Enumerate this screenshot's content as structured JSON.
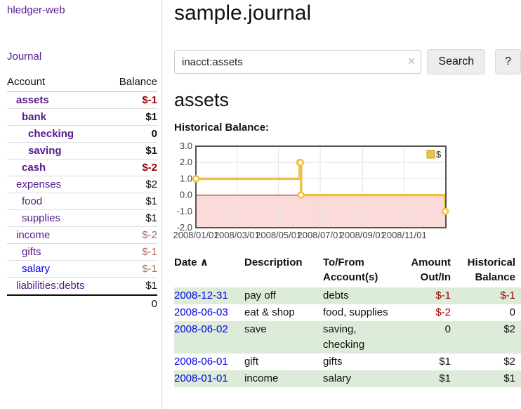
{
  "app": {
    "brand": "hledger-web",
    "nav": {
      "journal": "Journal"
    }
  },
  "sidebar": {
    "account_header": "Account",
    "balance_header": "Balance",
    "rows": [
      {
        "account": "assets",
        "balance": "$-1"
      },
      {
        "account": "bank",
        "balance": "$1"
      },
      {
        "account": "checking",
        "balance": "0"
      },
      {
        "account": "saving",
        "balance": "$1"
      },
      {
        "account": "cash",
        "balance": "$-2"
      },
      {
        "account": "expenses",
        "balance": "$2"
      },
      {
        "account": "food",
        "balance": "$1"
      },
      {
        "account": "supplies",
        "balance": "$1"
      },
      {
        "account": "income",
        "balance": "$-2"
      },
      {
        "account": "gifts",
        "balance": "$-1"
      },
      {
        "account": "salary",
        "balance": "$-1"
      },
      {
        "account": "liabilities:debts",
        "balance": "$1"
      }
    ],
    "total": "0"
  },
  "header": {
    "title": "sample.journal"
  },
  "search": {
    "value": "inacct:assets",
    "clear_icon": "×",
    "button_label": "Search",
    "help_label": "?"
  },
  "account_page": {
    "heading": "assets",
    "chart_title": "Historical Balance:"
  },
  "chart_data": {
    "type": "line",
    "step": true,
    "title": "Historical Balance:",
    "legend": {
      "label": "$",
      "position": "top-right"
    },
    "series": [
      {
        "name": "$",
        "color": "#edc240",
        "points": [
          [
            "2008-01-01",
            1
          ],
          [
            "2008-06-01",
            2
          ],
          [
            "2008-06-02",
            2
          ],
          [
            "2008-06-03",
            0
          ],
          [
            "2008-12-31",
            -1
          ]
        ]
      }
    ],
    "x_start": "2008-01-01",
    "x_end": "2009-01-01",
    "xticks": [
      {
        "date": "2008-01-01",
        "label": "2008/01/01"
      },
      {
        "date": "2008-03-01",
        "label": "2008/03/01"
      },
      {
        "date": "2008-05-01",
        "label": "2008/05/01"
      },
      {
        "date": "2008-07-01",
        "label": "2008/07/01"
      },
      {
        "date": "2008-09-01",
        "label": "2008/09/01"
      },
      {
        "date": "2008-11-01",
        "label": "2008/11/01"
      }
    ],
    "yticks": [
      {
        "v": 3,
        "label": "3.0"
      },
      {
        "v": 2,
        "label": "2.0"
      },
      {
        "v": 1,
        "label": "1.0"
      },
      {
        "v": 0,
        "label": "0.0"
      },
      {
        "v": -1,
        "label": "-1.0"
      },
      {
        "v": -2,
        "label": "-2.0"
      }
    ],
    "ylim": [
      -2,
      3
    ],
    "grid": true,
    "colors": {
      "negative_region": "#fbdada",
      "zero_line": "#a40000",
      "border": "#545454",
      "gridline": "#e4e4e4",
      "marker_fill": "#fffdf2",
      "legend_box_border": "#c9a227"
    }
  },
  "register": {
    "columns": {
      "date": "Date",
      "description": "Description",
      "tofrom": "To/From Account(s)",
      "amount": "Amount Out/In",
      "balance": "Historical Balance"
    },
    "sort_icon": "∧",
    "rows": [
      {
        "date": "2008-12-31",
        "description": "pay off",
        "accounts": "debts",
        "amount": "$-1",
        "balance": "$-1"
      },
      {
        "date": "2008-06-03",
        "description": "eat & shop",
        "accounts": "food, supplies",
        "amount": "$-2",
        "balance": "0"
      },
      {
        "date": "2008-06-02",
        "description": "save",
        "accounts": "saving, checking",
        "amount": "0",
        "balance": "$2"
      },
      {
        "date": "2008-06-01",
        "description": "gift",
        "accounts": "gifts",
        "amount": "$1",
        "balance": "$2"
      },
      {
        "date": "2008-01-01",
        "description": "income",
        "accounts": "salary",
        "amount": "$1",
        "balance": "$1"
      }
    ]
  }
}
